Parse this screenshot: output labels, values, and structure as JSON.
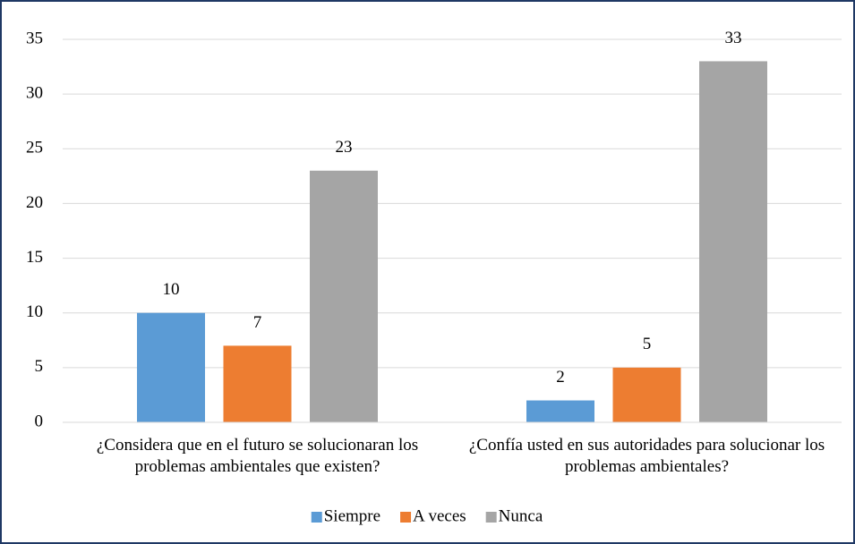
{
  "chart_data": {
    "type": "bar",
    "categories": [
      "¿Considera que en el futuro se solucionaran los problemas ambientales que existen?",
      "¿Confía usted en sus autoridades para solucionar los problemas ambientales?"
    ],
    "series": [
      {
        "name": "Siempre",
        "color": "#5b9bd5",
        "values": [
          10,
          2
        ]
      },
      {
        "name": "A veces",
        "color": "#ed7d31",
        "values": [
          7,
          5
        ]
      },
      {
        "name": "Nunca",
        "color": "#a5a5a5",
        "values": [
          23,
          33
        ]
      }
    ],
    "ylim": [
      0,
      35
    ],
    "yticks": [
      0,
      5,
      10,
      15,
      20,
      25,
      30,
      35
    ],
    "grid": true,
    "legend": "bottom"
  }
}
